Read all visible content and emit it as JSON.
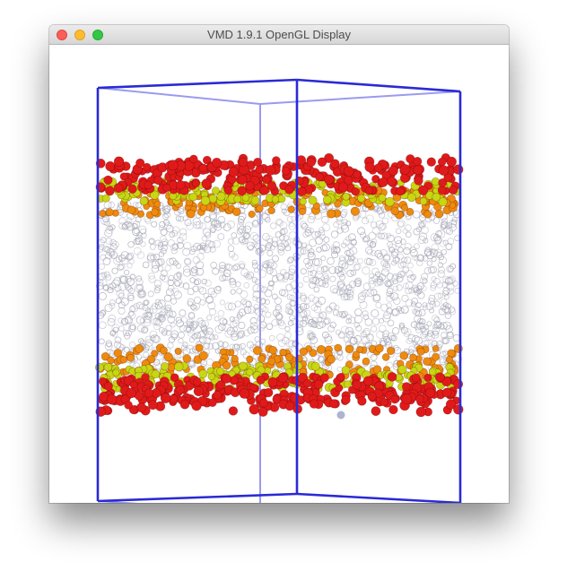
{
  "window": {
    "title": "VMD 1.9.1 OpenGL Display",
    "controls": [
      "close",
      "minimize",
      "zoom"
    ]
  },
  "display": {
    "background_color": "#ffffff",
    "box_color": "#2a2ad6",
    "box_back_color": "#9a9af0",
    "water_color": "#a8a8b8",
    "atom_colors": {
      "oxygen": "#e01a1a",
      "phosphorus": "#ee8a0e",
      "nitrogen": "#c8d613"
    }
  }
}
